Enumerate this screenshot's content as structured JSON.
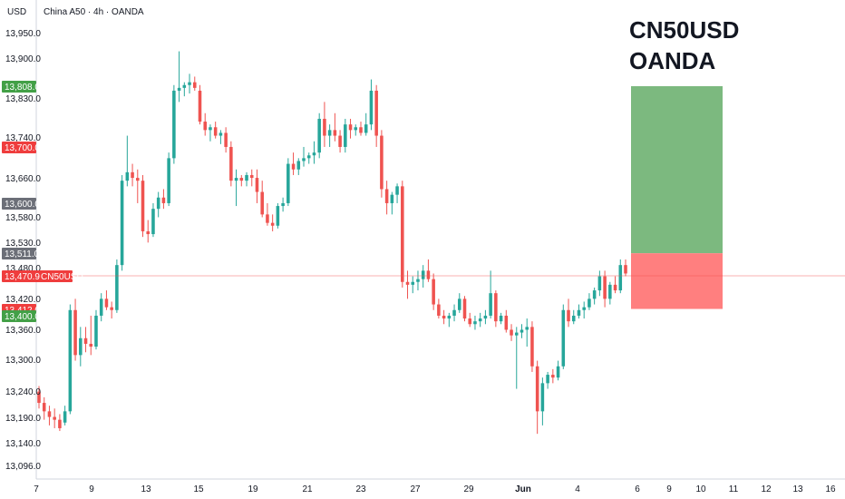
{
  "header": {
    "currency": "USD",
    "symbol_line": "China A50 · 4h · OANDA"
  },
  "watermark": {
    "line1": "CN50USD",
    "line2": "OANDA"
  },
  "colors": {
    "up": "#26a69a",
    "down": "#ef5350",
    "profit_zone": "#7cb97f",
    "loss_zone": "#ff7f7f",
    "tag_green": "#43a047",
    "tag_red": "#ef3d3d",
    "tag_gray": "#6c6f78",
    "price_line": "#ef5350"
  },
  "chart_data": {
    "type": "candlestick",
    "symbol": "CN50USD",
    "timeframe": "4h",
    "exchange": "OANDA",
    "y_axis_ticks": [
      "13,950.0",
      "13,900.0",
      "13,830.0",
      "13,740.0",
      "13,660.0",
      "13,580.0",
      "13,530.0",
      "13,480.0",
      "13,420.0",
      "13,360.0",
      "13,300.0",
      "13,240.0",
      "13,190.0",
      "13,140.0",
      "13,096.0"
    ],
    "x_axis_ticks": [
      "7",
      "9",
      "13",
      "15",
      "19",
      "21",
      "23",
      "27",
      "29",
      "Jun",
      "4",
      "6",
      "9",
      "10",
      "11",
      "12",
      "13",
      "16"
    ],
    "price_tags": [
      {
        "label": "13,808.0",
        "value": 13808,
        "color": "green"
      },
      {
        "label": "13,700.0",
        "value": 13700,
        "color": "red"
      },
      {
        "label": "13,600.0",
        "value": 13600,
        "color": "gray"
      },
      {
        "label": "13,511.0",
        "value": 13511,
        "color": "gray"
      },
      {
        "label": "13,470.9",
        "value": 13470.9,
        "color": "red",
        "symbol": "CN50USD"
      },
      {
        "label": "13,412.0",
        "value": 13412,
        "color": "red"
      },
      {
        "label": "13,400.0",
        "value": 13400,
        "color": "green"
      }
    ],
    "current_price": 13470.9,
    "position": {
      "entry": 13511.0,
      "take_profit": 13808.0,
      "stop_loss": 13412.0
    },
    "candles": [
      [
        13265,
        13275,
        13235,
        13245
      ],
      [
        13245,
        13255,
        13215,
        13230
      ],
      [
        13230,
        13240,
        13205,
        13220
      ],
      [
        13220,
        13235,
        13200,
        13215
      ],
      [
        13215,
        13225,
        13195,
        13200
      ],
      [
        13210,
        13240,
        13205,
        13230
      ],
      [
        13230,
        13420,
        13225,
        13410
      ],
      [
        13410,
        13430,
        13320,
        13330
      ],
      [
        13330,
        13380,
        13310,
        13360
      ],
      [
        13360,
        13380,
        13335,
        13350
      ],
      [
        13350,
        13400,
        13330,
        13345
      ],
      [
        13345,
        13410,
        13340,
        13400
      ],
      [
        13400,
        13440,
        13390,
        13430
      ],
      [
        13430,
        13445,
        13410,
        13415
      ],
      [
        13415,
        13425,
        13395,
        13410
      ],
      [
        13410,
        13500,
        13405,
        13490
      ],
      [
        13490,
        13650,
        13480,
        13640
      ],
      [
        13640,
        13720,
        13630,
        13655
      ],
      [
        13655,
        13670,
        13630,
        13645
      ],
      [
        13645,
        13660,
        13600,
        13640
      ],
      [
        13640,
        13650,
        13540,
        13550
      ],
      [
        13550,
        13570,
        13530,
        13545
      ],
      [
        13545,
        13600,
        13540,
        13590
      ],
      [
        13590,
        13620,
        13575,
        13610
      ],
      [
        13610,
        13625,
        13590,
        13600
      ],
      [
        13600,
        13690,
        13595,
        13680
      ],
      [
        13680,
        13810,
        13670,
        13800
      ],
      [
        13800,
        13870,
        13780,
        13805
      ],
      [
        13805,
        13815,
        13790,
        13810
      ],
      [
        13810,
        13830,
        13795,
        13815
      ],
      [
        13815,
        13825,
        13800,
        13805
      ],
      [
        13800,
        13810,
        13740,
        13745
      ],
      [
        13745,
        13760,
        13720,
        13730
      ],
      [
        13730,
        13740,
        13710,
        13735
      ],
      [
        13735,
        13745,
        13715,
        13720
      ],
      [
        13720,
        13730,
        13705,
        13725
      ],
      [
        13725,
        13735,
        13690,
        13700
      ],
      [
        13700,
        13710,
        13630,
        13640
      ],
      [
        13640,
        13660,
        13595,
        13645
      ],
      [
        13645,
        13650,
        13630,
        13640
      ],
      [
        13640,
        13655,
        13630,
        13650
      ],
      [
        13650,
        13660,
        13630,
        13645
      ],
      [
        13645,
        13660,
        13600,
        13620
      ],
      [
        13620,
        13640,
        13575,
        13580
      ],
      [
        13580,
        13600,
        13560,
        13565
      ],
      [
        13565,
        13580,
        13550,
        13560
      ],
      [
        13560,
        13600,
        13555,
        13595
      ],
      [
        13595,
        13610,
        13585,
        13600
      ],
      [
        13600,
        13680,
        13595,
        13670
      ],
      [
        13670,
        13690,
        13650,
        13660
      ],
      [
        13660,
        13680,
        13650,
        13675
      ],
      [
        13675,
        13700,
        13665,
        13680
      ],
      [
        13680,
        13690,
        13670,
        13685
      ],
      [
        13685,
        13710,
        13670,
        13690
      ],
      [
        13690,
        13760,
        13680,
        13750
      ],
      [
        13750,
        13780,
        13700,
        13720
      ],
      [
        13720,
        13740,
        13700,
        13730
      ],
      [
        13730,
        13760,
        13710,
        13720
      ],
      [
        13720,
        13730,
        13690,
        13700
      ],
      [
        13700,
        13750,
        13690,
        13740
      ],
      [
        13740,
        13750,
        13715,
        13730
      ],
      [
        13730,
        13740,
        13720,
        13735
      ],
      [
        13735,
        13745,
        13720,
        13725
      ],
      [
        13725,
        13760,
        13720,
        13740
      ],
      [
        13740,
        13820,
        13730,
        13800
      ],
      [
        13800,
        13810,
        13700,
        13720
      ],
      [
        13720,
        13730,
        13610,
        13625
      ],
      [
        13625,
        13640,
        13580,
        13600
      ],
      [
        13600,
        13620,
        13580,
        13615
      ],
      [
        13615,
        13635,
        13600,
        13630
      ],
      [
        13630,
        13640,
        13450,
        13460
      ],
      [
        13460,
        13480,
        13430,
        13455
      ],
      [
        13455,
        13470,
        13440,
        13460
      ],
      [
        13460,
        13480,
        13445,
        13465
      ],
      [
        13465,
        13490,
        13450,
        13480
      ],
      [
        13480,
        13500,
        13460,
        13465
      ],
      [
        13465,
        13475,
        13410,
        13420
      ],
      [
        13420,
        13430,
        13395,
        13400
      ],
      [
        13400,
        13410,
        13385,
        13395
      ],
      [
        13395,
        13405,
        13380,
        13400
      ],
      [
        13400,
        13420,
        13390,
        13410
      ],
      [
        13410,
        13440,
        13405,
        13430
      ],
      [
        13430,
        13435,
        13390,
        13395
      ],
      [
        13395,
        13405,
        13380,
        13385
      ],
      [
        13385,
        13400,
        13375,
        13390
      ],
      [
        13390,
        13405,
        13380,
        13395
      ],
      [
        13395,
        13410,
        13385,
        13400
      ],
      [
        13400,
        13480,
        13395,
        13440
      ],
      [
        13440,
        13445,
        13380,
        13390
      ],
      [
        13390,
        13405,
        13385,
        13400
      ],
      [
        13400,
        13410,
        13370,
        13375
      ],
      [
        13375,
        13385,
        13355,
        13365
      ],
      [
        13365,
        13380,
        13270,
        13370
      ],
      [
        13370,
        13385,
        13360,
        13375
      ],
      [
        13375,
        13395,
        13345,
        13380
      ],
      [
        13380,
        13390,
        13300,
        13310
      ],
      [
        13310,
        13320,
        13190,
        13230
      ],
      [
        13230,
        13290,
        13205,
        13280
      ],
      [
        13280,
        13300,
        13270,
        13295
      ],
      [
        13295,
        13305,
        13280,
        13290
      ],
      [
        13290,
        13320,
        13285,
        13310
      ],
      [
        13310,
        13420,
        13305,
        13410
      ],
      [
        13410,
        13430,
        13380,
        13390
      ],
      [
        13390,
        13410,
        13385,
        13400
      ],
      [
        13400,
        13420,
        13395,
        13410
      ],
      [
        13410,
        13425,
        13395,
        13415
      ],
      [
        13415,
        13440,
        13410,
        13430
      ],
      [
        13430,
        13450,
        13420,
        13445
      ],
      [
        13445,
        13480,
        13435,
        13470
      ],
      [
        13470,
        13480,
        13415,
        13430
      ],
      [
        13430,
        13460,
        13420,
        13455
      ],
      [
        13455,
        13470,
        13440,
        13445
      ],
      [
        13445,
        13500,
        13440,
        13490
      ],
      [
        13490,
        13500,
        13470,
        13475
      ]
    ]
  }
}
